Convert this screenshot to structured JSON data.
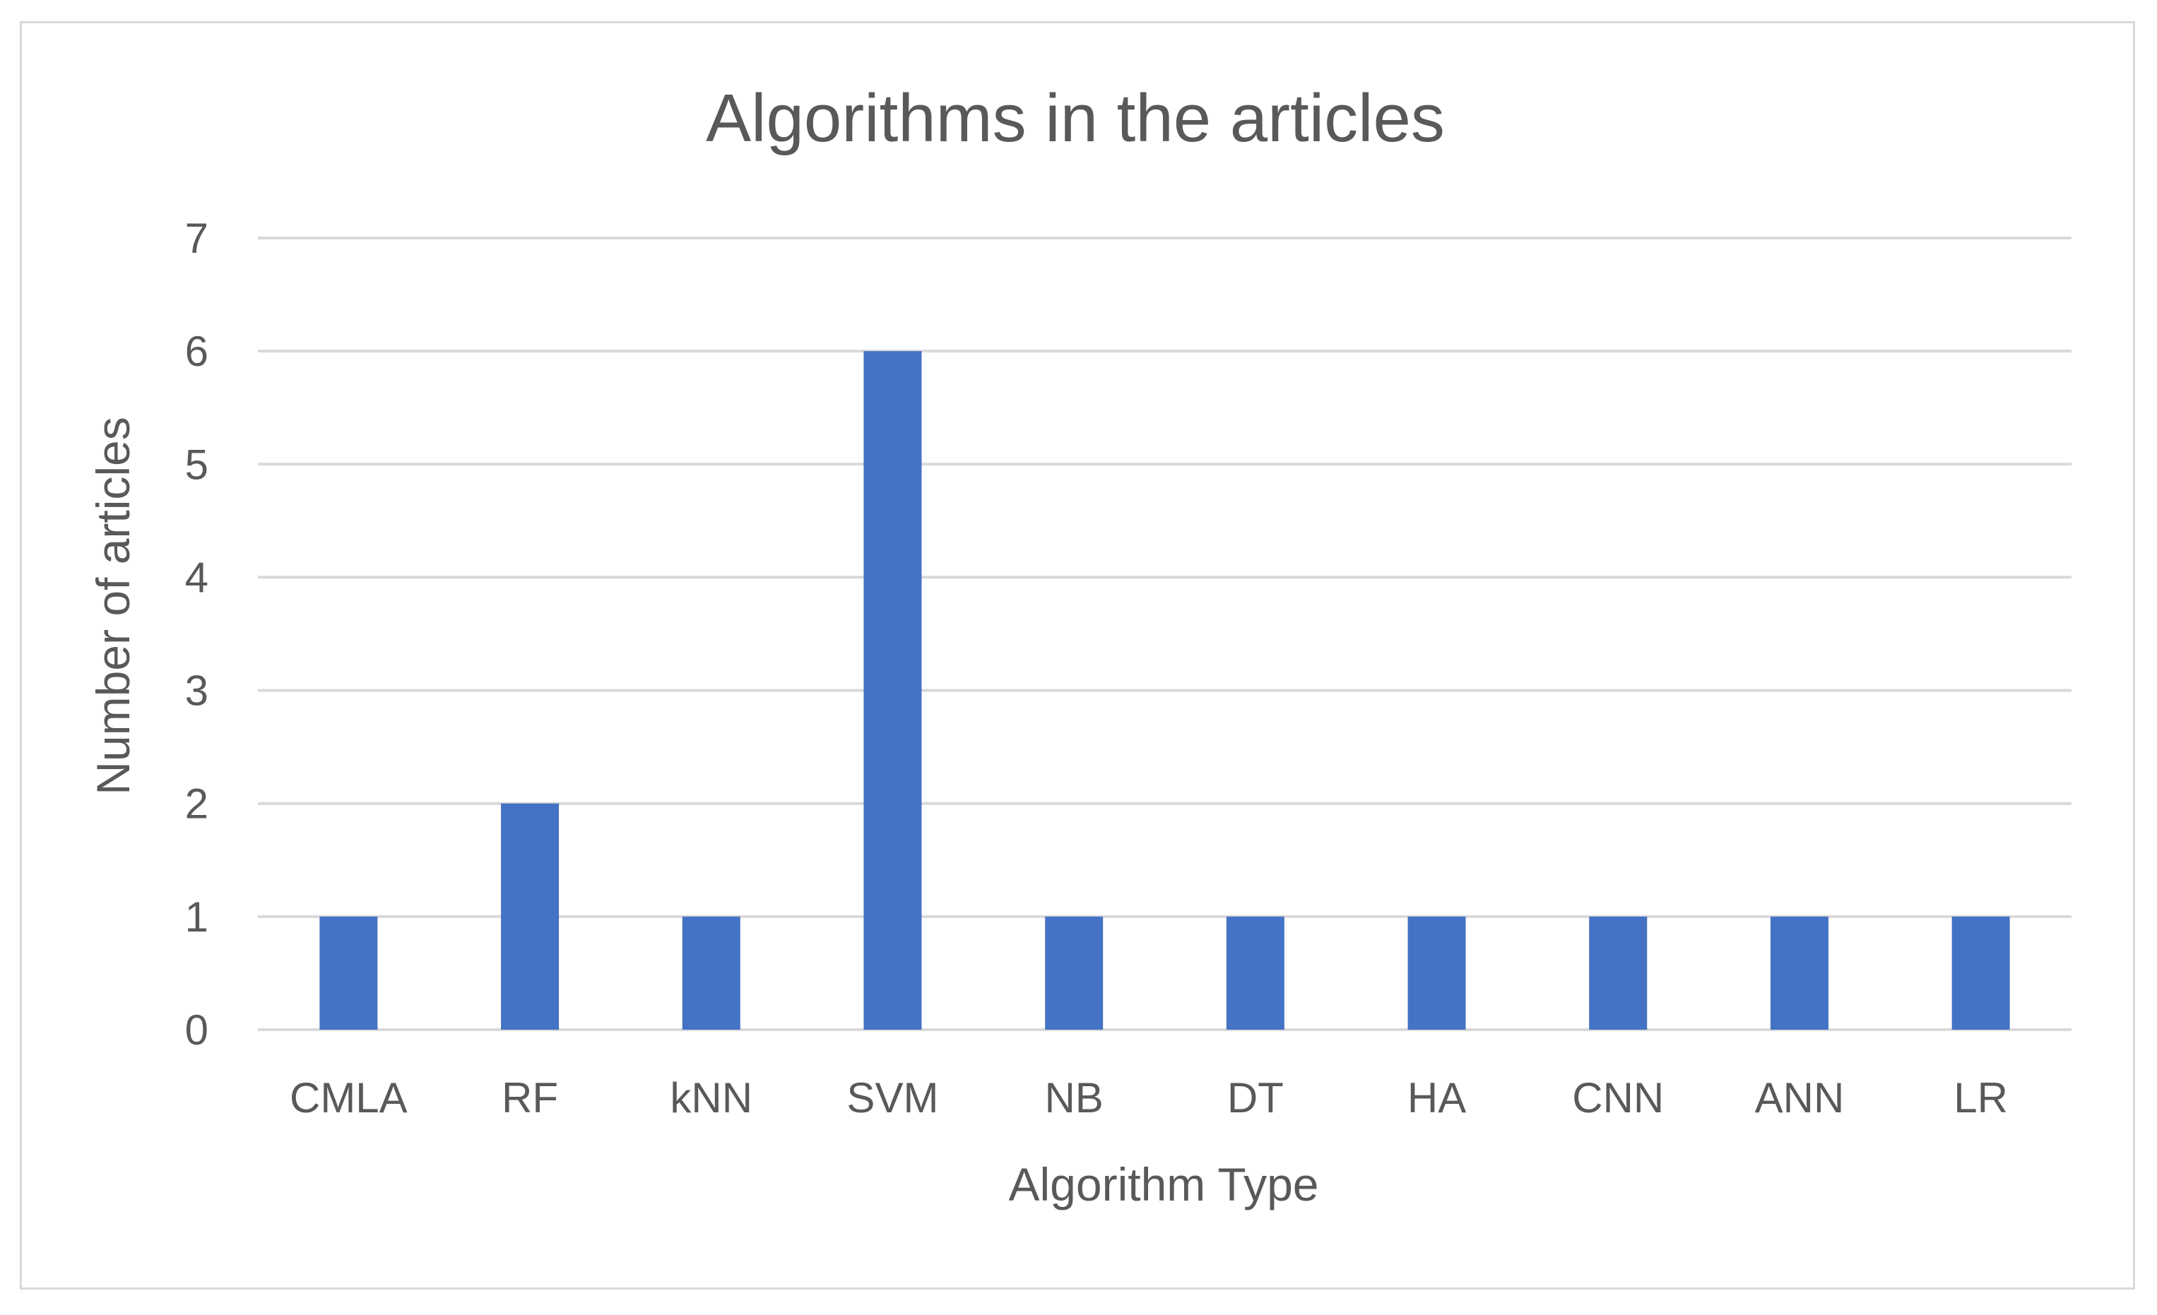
{
  "chart_data": {
    "type": "bar",
    "title": "Algorithms in the articles",
    "xlabel": "Algorithm Type",
    "ylabel": "Number of articles",
    "categories": [
      "CMLA",
      "RF",
      "kNN",
      "SVM",
      "NB",
      "DT",
      "HA",
      "CNN",
      "ANN",
      "LR"
    ],
    "values": [
      1,
      2,
      1,
      6,
      1,
      1,
      1,
      1,
      1,
      1
    ],
    "ylim": [
      0,
      7
    ],
    "yticks": [
      0,
      1,
      2,
      3,
      4,
      5,
      6,
      7
    ],
    "grid": true,
    "legend": "none",
    "colors": {
      "bar": "#4472c4",
      "grid": "#d9d9d9",
      "text": "#595959",
      "frame": "#d9d9d9"
    }
  }
}
